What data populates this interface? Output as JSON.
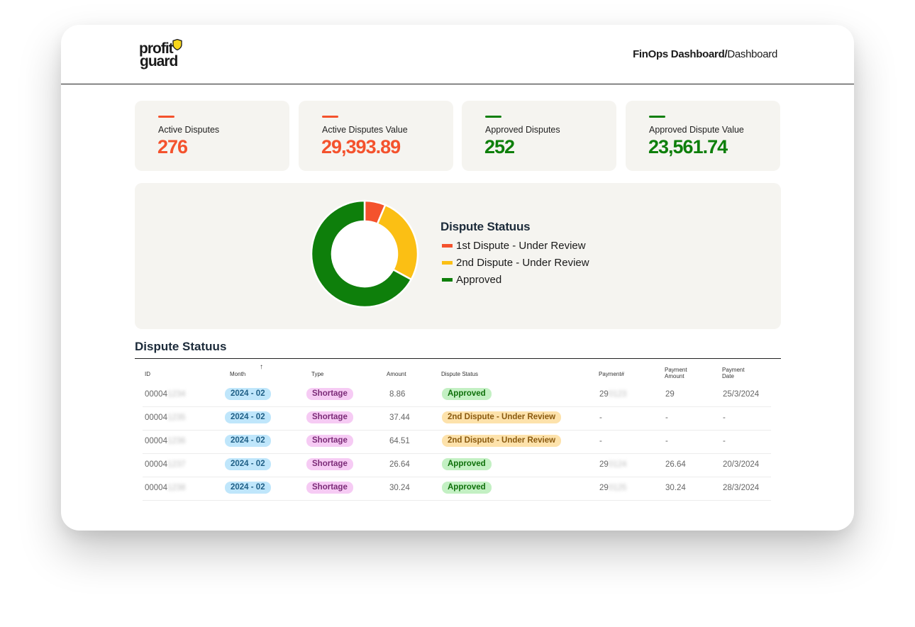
{
  "header": {
    "logo_line1": "profit",
    "logo_line2": "guard",
    "breadcrumb_bold": "FinOps Dashboard/",
    "breadcrumb_rest": "Dashboard"
  },
  "cards": [
    {
      "label": "Active Disputes",
      "value": "276",
      "color": "#f4522d"
    },
    {
      "label": "Active Disputes Value",
      "value": "29,393.89",
      "color": "#f4522d"
    },
    {
      "label": "Approved Disputes",
      "value": "252",
      "color": "#0e7f0b"
    },
    {
      "label": "Approved Dispute Value",
      "value": "23,561.74",
      "color": "#0e7f0b"
    }
  ],
  "chart_data": {
    "type": "pie",
    "title": "Dispute Statuus",
    "categories": [
      "1st Dispute - Under Review",
      "2nd Dispute - Under Review",
      "Approved"
    ],
    "values": [
      24,
      100,
      252
    ],
    "colors": [
      "#f4522d",
      "#fbbf14",
      "#0e7f0b"
    ],
    "donut": true,
    "legend_position": "right"
  },
  "table": {
    "title": "Dispute Statuus",
    "columns": [
      "ID",
      "Month",
      "Type",
      "Amount",
      "Dispute Status",
      "Payment#",
      "Payment Amount",
      "Payment Date"
    ],
    "rows": [
      {
        "id": "00004",
        "id_hidden": "1234",
        "month": "2024 - 02",
        "type": "Shortage",
        "amount": "8.86",
        "status": "Approved",
        "payment_no": "29",
        "payment_hidden": "0123",
        "payment_amount": "29",
        "payment_date": "25/3/2024"
      },
      {
        "id": "00004",
        "id_hidden": "1235",
        "month": "2024 - 02",
        "type": "Shortage",
        "amount": "37.44",
        "status": "2nd Dispute - Under Review",
        "payment_no": "-",
        "payment_hidden": "",
        "payment_amount": "-",
        "payment_date": "-"
      },
      {
        "id": "00004",
        "id_hidden": "1236",
        "month": "2024 - 02",
        "type": "Shortage",
        "amount": "64.51",
        "status": "2nd Dispute - Under Review",
        "payment_no": "-",
        "payment_hidden": "",
        "payment_amount": "-",
        "payment_date": "-"
      },
      {
        "id": "00004",
        "id_hidden": "1237",
        "month": "2024 - 02",
        "type": "Shortage",
        "amount": "26.64",
        "status": "Approved",
        "payment_no": "29",
        "payment_hidden": "0124",
        "payment_amount": "26.64",
        "payment_date": "20/3/2024"
      },
      {
        "id": "00004",
        "id_hidden": "1238",
        "month": "2024 - 02",
        "type": "Shortage",
        "amount": "30.24",
        "status": "Approved",
        "payment_no": "29",
        "payment_hidden": "0125",
        "payment_amount": "30.24",
        "payment_date": "28/3/2024"
      }
    ]
  }
}
